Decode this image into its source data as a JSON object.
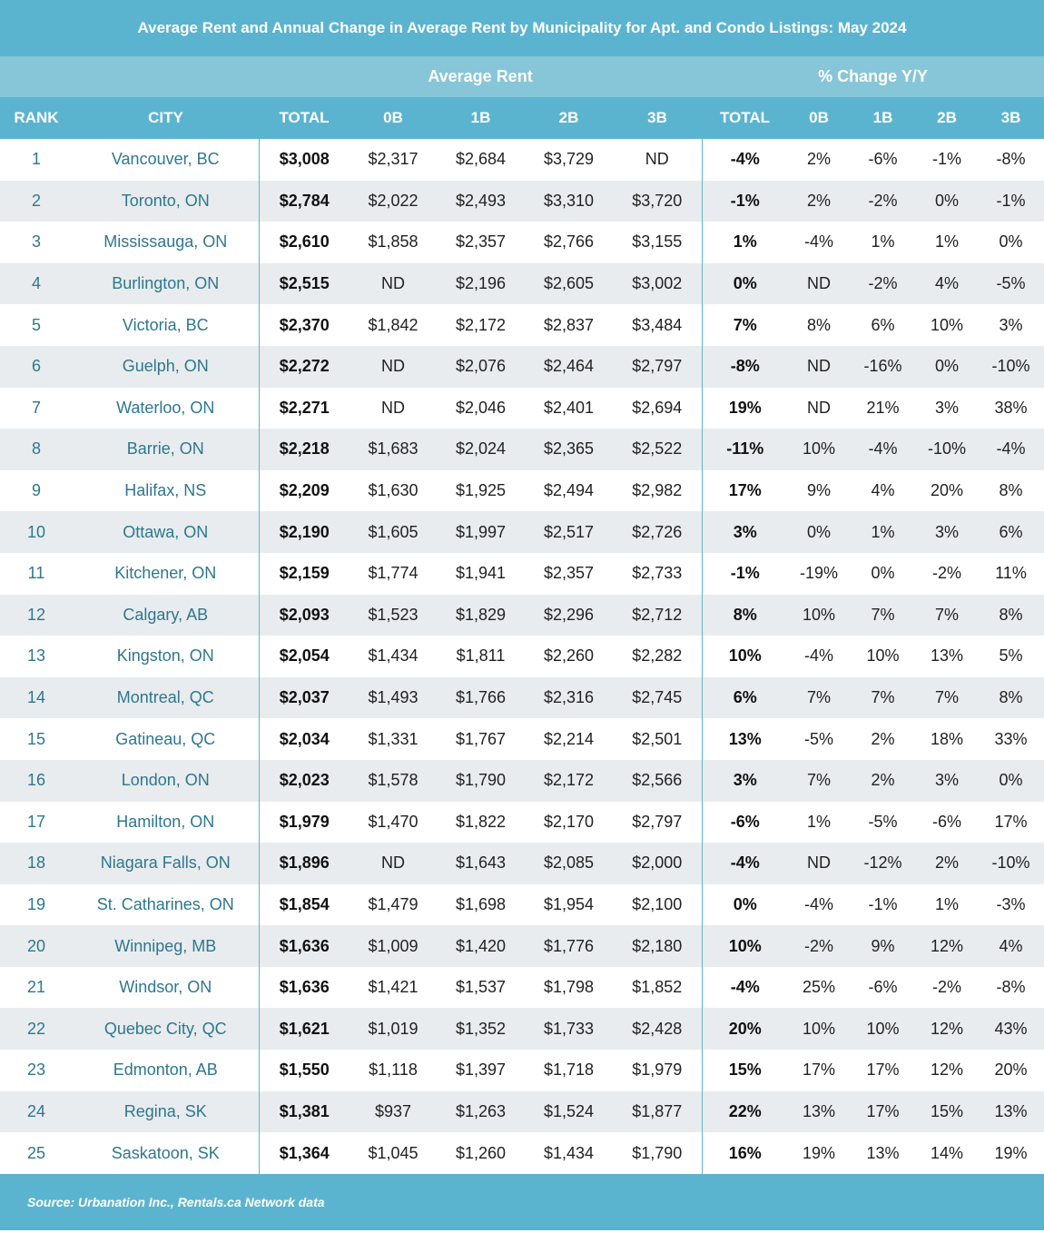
{
  "title": "Average Rent and Annual Change in Average Rent by Municipality for Apt. and Condo Listings: May 2024",
  "groups": {
    "average_rent": "Average Rent",
    "pct_change": "% Change Y/Y"
  },
  "columns": [
    "RANK",
    "CITY",
    "TOTAL",
    "0B",
    "1B",
    "2B",
    "3B",
    "TOTAL",
    "0B",
    "1B",
    "2B",
    "3B"
  ],
  "source": "Source: Urbanation Inc., Rentals.ca Network data",
  "colors": {
    "header": "#5bb4cf",
    "group_header": "#86c6d8",
    "city_text": "#2e7790",
    "row_alt": "#e8ecee"
  },
  "chart_data": {
    "type": "table",
    "title": "Average Rent and Annual Change in Average Rent by Municipality for Apt. and Condo Listings: May 2024",
    "columns": [
      "RANK",
      "CITY",
      "TOTAL",
      "0B",
      "1B",
      "2B",
      "3B",
      "TOTAL",
      "0B",
      "1B",
      "2B",
      "3B"
    ],
    "rows": [
      [
        "1",
        "Vancouver, BC",
        "$3,008",
        "$2,317",
        "$2,684",
        "$3,729",
        "ND",
        "-4%",
        "2%",
        "-6%",
        "-1%",
        "-8%"
      ],
      [
        "2",
        "Toronto, ON",
        "$2,784",
        "$2,022",
        "$2,493",
        "$3,310",
        "$3,720",
        "-1%",
        "2%",
        "-2%",
        "0%",
        "-1%"
      ],
      [
        "3",
        "Mississauga, ON",
        "$2,610",
        "$1,858",
        "$2,357",
        "$2,766",
        "$3,155",
        "1%",
        "-4%",
        "1%",
        "1%",
        "0%"
      ],
      [
        "4",
        "Burlington, ON",
        "$2,515",
        "ND",
        "$2,196",
        "$2,605",
        "$3,002",
        "0%",
        "ND",
        "-2%",
        "4%",
        "-5%"
      ],
      [
        "5",
        "Victoria, BC",
        "$2,370",
        "$1,842",
        "$2,172",
        "$2,837",
        "$3,484",
        "7%",
        "8%",
        "6%",
        "10%",
        "3%"
      ],
      [
        "6",
        "Guelph, ON",
        "$2,272",
        "ND",
        "$2,076",
        "$2,464",
        "$2,797",
        "-8%",
        "ND",
        "-16%",
        "0%",
        "-10%"
      ],
      [
        "7",
        "Waterloo, ON",
        "$2,271",
        "ND",
        "$2,046",
        "$2,401",
        "$2,694",
        "19%",
        "ND",
        "21%",
        "3%",
        "38%"
      ],
      [
        "8",
        "Barrie, ON",
        "$2,218",
        "$1,683",
        "$2,024",
        "$2,365",
        "$2,522",
        "-11%",
        "10%",
        "-4%",
        "-10%",
        "-4%"
      ],
      [
        "9",
        "Halifax, NS",
        "$2,209",
        "$1,630",
        "$1,925",
        "$2,494",
        "$2,982",
        "17%",
        "9%",
        "4%",
        "20%",
        "8%"
      ],
      [
        "10",
        "Ottawa, ON",
        "$2,190",
        "$1,605",
        "$1,997",
        "$2,517",
        "$2,726",
        "3%",
        "0%",
        "1%",
        "3%",
        "6%"
      ],
      [
        "11",
        "Kitchener, ON",
        "$2,159",
        "$1,774",
        "$1,941",
        "$2,357",
        "$2,733",
        "-1%",
        "-19%",
        "0%",
        "-2%",
        "11%"
      ],
      [
        "12",
        "Calgary, AB",
        "$2,093",
        "$1,523",
        "$1,829",
        "$2,296",
        "$2,712",
        "8%",
        "10%",
        "7%",
        "7%",
        "8%"
      ],
      [
        "13",
        "Kingston, ON",
        "$2,054",
        "$1,434",
        "$1,811",
        "$2,260",
        "$2,282",
        "10%",
        "-4%",
        "10%",
        "13%",
        "5%"
      ],
      [
        "14",
        "Montreal, QC",
        "$2,037",
        "$1,493",
        "$1,766",
        "$2,316",
        "$2,745",
        "6%",
        "7%",
        "7%",
        "7%",
        "8%"
      ],
      [
        "15",
        "Gatineau, QC",
        "$2,034",
        "$1,331",
        "$1,767",
        "$2,214",
        "$2,501",
        "13%",
        "-5%",
        "2%",
        "18%",
        "33%"
      ],
      [
        "16",
        "London, ON",
        "$2,023",
        "$1,578",
        "$1,790",
        "$2,172",
        "$2,566",
        "3%",
        "7%",
        "2%",
        "3%",
        "0%"
      ],
      [
        "17",
        "Hamilton, ON",
        "$1,979",
        "$1,470",
        "$1,822",
        "$2,170",
        "$2,797",
        "-6%",
        "1%",
        "-5%",
        "-6%",
        "17%"
      ],
      [
        "18",
        "Niagara Falls, ON",
        "$1,896",
        "ND",
        "$1,643",
        "$2,085",
        "$2,000",
        "-4%",
        "ND",
        "-12%",
        "2%",
        "-10%"
      ],
      [
        "19",
        "St. Catharines, ON",
        "$1,854",
        "$1,479",
        "$1,698",
        "$1,954",
        "$2,100",
        "0%",
        "-4%",
        "-1%",
        "1%",
        "-3%"
      ],
      [
        "20",
        "Winnipeg, MB",
        "$1,636",
        "$1,009",
        "$1,420",
        "$1,776",
        "$2,180",
        "10%",
        "-2%",
        "9%",
        "12%",
        "4%"
      ],
      [
        "21",
        "Windsor, ON",
        "$1,636",
        "$1,421",
        "$1,537",
        "$1,798",
        "$1,852",
        "-4%",
        "25%",
        "-6%",
        "-2%",
        "-8%"
      ],
      [
        "22",
        "Quebec City, QC",
        "$1,621",
        "$1,019",
        "$1,352",
        "$1,733",
        "$2,428",
        "20%",
        "10%",
        "10%",
        "12%",
        "43%"
      ],
      [
        "23",
        "Edmonton, AB",
        "$1,550",
        "$1,118",
        "$1,397",
        "$1,718",
        "$1,979",
        "15%",
        "17%",
        "17%",
        "12%",
        "20%"
      ],
      [
        "24",
        "Regina, SK",
        "$1,381",
        "$937",
        "$1,263",
        "$1,524",
        "$1,877",
        "22%",
        "13%",
        "17%",
        "15%",
        "13%"
      ],
      [
        "25",
        "Saskatoon, SK",
        "$1,364",
        "$1,045",
        "$1,260",
        "$1,434",
        "$1,790",
        "16%",
        "19%",
        "13%",
        "14%",
        "19%"
      ]
    ]
  }
}
